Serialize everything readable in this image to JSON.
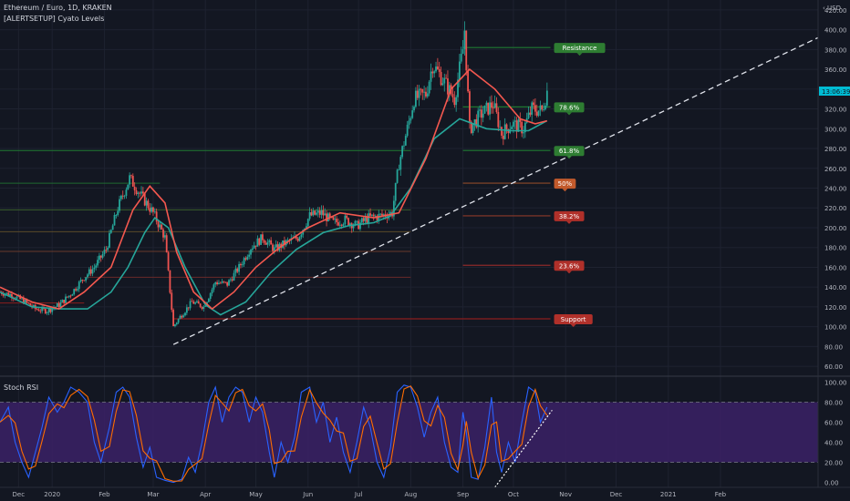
{
  "header": {
    "symbol_line": "Ethereum / Euro, 1D, KRAKEN",
    "indicator_line": "[ALERTSETUP] Cyato Levels",
    "rsi_title": "Stoch RSI",
    "currency": "USD"
  },
  "chart_data": {
    "type": "line",
    "title": "Ethereum / Euro, 1D, KRAKEN",
    "price_axis": {
      "ylim": [
        50,
        430
      ],
      "ticks": [
        60,
        80,
        100,
        120,
        140,
        160,
        180,
        200,
        220,
        240,
        260,
        280,
        300,
        320,
        340,
        360,
        380,
        400,
        420
      ],
      "tick_labels": [
        "60.00",
        "80.00",
        "100.00",
        "120.00",
        "140.00",
        "160.00",
        "180.00",
        "200.00",
        "220.00",
        "240.00",
        "260.00",
        "280.00",
        "300.00",
        "320.00",
        "340.00",
        "360.00",
        "380.00",
        "400.00",
        "420.00"
      ]
    },
    "rsi_axis": {
      "ylim": [
        -5,
        105
      ],
      "ticks": [
        0,
        20,
        40,
        60,
        80,
        100
      ],
      "tick_labels": [
        "0.00",
        "20.00",
        "40.00",
        "60.00",
        "80.00",
        "100.00"
      ],
      "band": [
        20,
        80
      ]
    },
    "time_axis": {
      "start": "2019-12-01",
      "end": "2021-03-31",
      "labels": [
        {
          "date": "2019-12-12",
          "text": "Dec"
        },
        {
          "date": "2020-01-01",
          "text": "2020"
        },
        {
          "date": "2020-02-01",
          "text": "Feb"
        },
        {
          "date": "2020-03-01",
          "text": "Mar"
        },
        {
          "date": "2020-04-01",
          "text": "Apr"
        },
        {
          "date": "2020-05-01",
          "text": "May"
        },
        {
          "date": "2020-06-01",
          "text": "Jun"
        },
        {
          "date": "2020-07-01",
          "text": "Jul"
        },
        {
          "date": "2020-08-01",
          "text": "Aug"
        },
        {
          "date": "2020-09-01",
          "text": "Sep"
        },
        {
          "date": "2020-10-01",
          "text": "Oct"
        },
        {
          "date": "2020-11-01",
          "text": "Nov"
        },
        {
          "date": "2020-12-01",
          "text": "Dec"
        },
        {
          "date": "2021-01-01",
          "text": "2021"
        },
        {
          "date": "2021-02-01",
          "text": "Feb"
        }
      ]
    },
    "last_price": {
      "value": 338,
      "label": "13:06:39",
      "color": "#00bcd4"
    },
    "price_series": [
      {
        "date": "2019-12-01",
        "close": 135
      },
      {
        "date": "2019-12-08",
        "close": 132
      },
      {
        "date": "2019-12-15",
        "close": 126
      },
      {
        "date": "2019-12-22",
        "close": 118
      },
      {
        "date": "2019-12-29",
        "close": 116
      },
      {
        "date": "2020-01-05",
        "close": 122
      },
      {
        "date": "2020-01-12",
        "close": 133
      },
      {
        "date": "2020-01-19",
        "close": 148
      },
      {
        "date": "2020-01-26",
        "close": 160
      },
      {
        "date": "2020-02-02",
        "close": 178
      },
      {
        "date": "2020-02-09",
        "close": 220
      },
      {
        "date": "2020-02-16",
        "close": 250
      },
      {
        "date": "2020-02-23",
        "close": 232
      },
      {
        "date": "2020-03-01",
        "close": 215
      },
      {
        "date": "2020-03-08",
        "close": 190
      },
      {
        "date": "2020-03-13",
        "close": 100
      },
      {
        "date": "2020-03-17",
        "close": 110
      },
      {
        "date": "2020-03-24",
        "close": 125
      },
      {
        "date": "2020-03-31",
        "close": 120
      },
      {
        "date": "2020-04-07",
        "close": 145
      },
      {
        "date": "2020-04-14",
        "close": 143
      },
      {
        "date": "2020-04-21",
        "close": 160
      },
      {
        "date": "2020-04-28",
        "close": 180
      },
      {
        "date": "2020-05-05",
        "close": 190
      },
      {
        "date": "2020-05-12",
        "close": 178
      },
      {
        "date": "2020-05-19",
        "close": 185
      },
      {
        "date": "2020-05-26",
        "close": 190
      },
      {
        "date": "2020-06-02",
        "close": 212
      },
      {
        "date": "2020-06-09",
        "close": 215
      },
      {
        "date": "2020-06-16",
        "close": 205
      },
      {
        "date": "2020-06-23",
        "close": 208
      },
      {
        "date": "2020-06-30",
        "close": 202
      },
      {
        "date": "2020-07-07",
        "close": 210
      },
      {
        "date": "2020-07-14",
        "close": 212
      },
      {
        "date": "2020-07-21",
        "close": 215
      },
      {
        "date": "2020-07-25",
        "close": 265
      },
      {
        "date": "2020-07-30",
        "close": 300
      },
      {
        "date": "2020-08-03",
        "close": 330
      },
      {
        "date": "2020-08-10",
        "close": 335
      },
      {
        "date": "2020-08-14",
        "close": 365
      },
      {
        "date": "2020-08-20",
        "close": 350
      },
      {
        "date": "2020-08-27",
        "close": 330
      },
      {
        "date": "2020-09-01",
        "close": 380
      },
      {
        "date": "2020-09-02",
        "close": 400
      },
      {
        "date": "2020-09-05",
        "close": 300
      },
      {
        "date": "2020-09-12",
        "close": 315
      },
      {
        "date": "2020-09-19",
        "close": 325
      },
      {
        "date": "2020-09-24",
        "close": 295
      },
      {
        "date": "2020-09-30",
        "close": 305
      },
      {
        "date": "2020-10-07",
        "close": 300
      },
      {
        "date": "2020-10-12",
        "close": 320
      },
      {
        "date": "2020-10-18",
        "close": 318
      },
      {
        "date": "2020-10-21",
        "close": 338
      }
    ],
    "ma_fast": [
      {
        "date": "2019-12-01",
        "value": 140
      },
      {
        "date": "2019-12-20",
        "value": 125
      },
      {
        "date": "2020-01-05",
        "value": 118
      },
      {
        "date": "2020-01-20",
        "value": 135
      },
      {
        "date": "2020-02-05",
        "value": 160
      },
      {
        "date": "2020-02-18",
        "value": 218
      },
      {
        "date": "2020-02-28",
        "value": 242
      },
      {
        "date": "2020-03-08",
        "value": 225
      },
      {
        "date": "2020-03-15",
        "value": 175
      },
      {
        "date": "2020-03-25",
        "value": 135
      },
      {
        "date": "2020-04-05",
        "value": 118
      },
      {
        "date": "2020-04-18",
        "value": 135
      },
      {
        "date": "2020-05-01",
        "value": 160
      },
      {
        "date": "2020-05-15",
        "value": 180
      },
      {
        "date": "2020-06-01",
        "value": 200
      },
      {
        "date": "2020-06-20",
        "value": 215
      },
      {
        "date": "2020-07-10",
        "value": 210
      },
      {
        "date": "2020-07-25",
        "value": 215
      },
      {
        "date": "2020-08-10",
        "value": 270
      },
      {
        "date": "2020-08-25",
        "value": 340
      },
      {
        "date": "2020-09-05",
        "value": 360
      },
      {
        "date": "2020-09-20",
        "value": 340
      },
      {
        "date": "2020-10-05",
        "value": 310
      },
      {
        "date": "2020-10-14",
        "value": 305
      },
      {
        "date": "2020-10-21",
        "value": 308
      }
    ],
    "ma_slow": [
      {
        "date": "2019-12-01",
        "value": 135
      },
      {
        "date": "2019-12-20",
        "value": 120
      },
      {
        "date": "2020-01-05",
        "value": 118
      },
      {
        "date": "2020-01-22",
        "value": 118
      },
      {
        "date": "2020-02-05",
        "value": 135
      },
      {
        "date": "2020-02-15",
        "value": 160
      },
      {
        "date": "2020-02-25",
        "value": 195
      },
      {
        "date": "2020-03-02",
        "value": 210
      },
      {
        "date": "2020-03-10",
        "value": 200
      },
      {
        "date": "2020-03-20",
        "value": 160
      },
      {
        "date": "2020-04-01",
        "value": 122
      },
      {
        "date": "2020-04-10",
        "value": 112
      },
      {
        "date": "2020-04-25",
        "value": 125
      },
      {
        "date": "2020-05-10",
        "value": 155
      },
      {
        "date": "2020-05-25",
        "value": 178
      },
      {
        "date": "2020-06-10",
        "value": 195
      },
      {
        "date": "2020-06-25",
        "value": 202
      },
      {
        "date": "2020-07-10",
        "value": 205
      },
      {
        "date": "2020-07-20",
        "value": 212
      },
      {
        "date": "2020-08-01",
        "value": 240
      },
      {
        "date": "2020-08-15",
        "value": 290
      },
      {
        "date": "2020-08-30",
        "value": 310
      },
      {
        "date": "2020-09-15",
        "value": 300
      },
      {
        "date": "2020-09-30",
        "value": 298
      },
      {
        "date": "2020-10-10",
        "value": 298
      },
      {
        "date": "2020-10-21",
        "value": 308
      }
    ],
    "trendline": {
      "from": {
        "date": "2020-03-13",
        "value": 82
      },
      "to": {
        "date": "2021-03-31",
        "value": 392
      }
    },
    "levels": [
      {
        "name": "Resistance",
        "value": 382,
        "from": "2020-09-01",
        "to": "2020-10-23",
        "color": "#1f7a32",
        "label_color": "#2e7d32"
      },
      {
        "name": "78.6%",
        "value": 322,
        "from": "2020-09-01",
        "to": "2020-10-23",
        "color": "#1f7a32",
        "label_color": "#2e7d32"
      },
      {
        "name": "61.8%",
        "value": 278,
        "from": "2020-09-01",
        "to": "2020-10-23",
        "color": "#1f7a32",
        "label_color": "#2e7d32"
      },
      {
        "name": "50%",
        "value": 245,
        "from": "2020-09-01",
        "to": "2020-10-23",
        "color": "#8d4a2a",
        "label_color": "#c25a2c"
      },
      {
        "name": "38.2%",
        "value": 212,
        "from": "2020-09-01",
        "to": "2020-10-23",
        "color": "#8d3a2a",
        "label_color": "#b0302a"
      },
      {
        "name": "23.6%",
        "value": 162,
        "from": "2020-09-01",
        "to": "2020-10-23",
        "color": "#8d2a2a",
        "label_color": "#b0302a"
      },
      {
        "name": "Support",
        "value": 108,
        "from": "2020-03-13",
        "to": "2020-10-23",
        "color": "#8b1e1e",
        "label_color": "#b0302a"
      }
    ],
    "hist_levels": [
      {
        "value": 278,
        "from": "2019-12-01",
        "to": "2020-08-01",
        "color": "#1f7a32"
      },
      {
        "value": 245,
        "from": "2019-12-01",
        "to": "2020-03-05",
        "color": "#1f6a30"
      },
      {
        "value": 218,
        "from": "2019-12-01",
        "to": "2020-08-01",
        "color": "#3a5e2c"
      },
      {
        "value": 196,
        "from": "2019-12-01",
        "to": "2020-08-01",
        "color": "#5a4a2a"
      },
      {
        "value": 176,
        "from": "2019-12-01",
        "to": "2020-08-01",
        "color": "#6a3a2a"
      },
      {
        "value": 150,
        "from": "2020-01-20",
        "to": "2020-08-01",
        "color": "#6a2a2a"
      },
      {
        "value": 124,
        "from": "2019-12-01",
        "to": "2020-01-20",
        "color": "#8b1e1e"
      }
    ],
    "rsi_k": [
      {
        "date": "2019-12-01",
        "value": 60
      },
      {
        "date": "2019-12-06",
        "value": 75
      },
      {
        "date": "2019-12-10",
        "value": 40
      },
      {
        "date": "2019-12-14",
        "value": 20
      },
      {
        "date": "2019-12-18",
        "value": 5
      },
      {
        "date": "2019-12-22",
        "value": 30
      },
      {
        "date": "2019-12-26",
        "value": 55
      },
      {
        "date": "2019-12-30",
        "value": 85
      },
      {
        "date": "2020-01-04",
        "value": 70
      },
      {
        "date": "2020-01-08",
        "value": 80
      },
      {
        "date": "2020-01-12",
        "value": 95
      },
      {
        "date": "2020-01-17",
        "value": 90
      },
      {
        "date": "2020-01-22",
        "value": 80
      },
      {
        "date": "2020-01-26",
        "value": 40
      },
      {
        "date": "2020-01-30",
        "value": 20
      },
      {
        "date": "2020-02-04",
        "value": 55
      },
      {
        "date": "2020-02-08",
        "value": 90
      },
      {
        "date": "2020-02-12",
        "value": 95
      },
      {
        "date": "2020-02-16",
        "value": 85
      },
      {
        "date": "2020-02-20",
        "value": 45
      },
      {
        "date": "2020-02-24",
        "value": 15
      },
      {
        "date": "2020-02-28",
        "value": 35
      },
      {
        "date": "2020-03-03",
        "value": 5
      },
      {
        "date": "2020-03-08",
        "value": 2
      },
      {
        "date": "2020-03-13",
        "value": 0
      },
      {
        "date": "2020-03-18",
        "value": 3
      },
      {
        "date": "2020-03-22",
        "value": 25
      },
      {
        "date": "2020-03-26",
        "value": 10
      },
      {
        "date": "2020-03-30",
        "value": 40
      },
      {
        "date": "2020-04-03",
        "value": 80
      },
      {
        "date": "2020-04-07",
        "value": 95
      },
      {
        "date": "2020-04-11",
        "value": 60
      },
      {
        "date": "2020-04-15",
        "value": 85
      },
      {
        "date": "2020-04-19",
        "value": 95
      },
      {
        "date": "2020-04-23",
        "value": 90
      },
      {
        "date": "2020-04-27",
        "value": 60
      },
      {
        "date": "2020-05-01",
        "value": 85
      },
      {
        "date": "2020-05-05",
        "value": 70
      },
      {
        "date": "2020-05-09",
        "value": 30
      },
      {
        "date": "2020-05-12",
        "value": 5
      },
      {
        "date": "2020-05-16",
        "value": 40
      },
      {
        "date": "2020-05-20",
        "value": 20
      },
      {
        "date": "2020-05-24",
        "value": 45
      },
      {
        "date": "2020-05-28",
        "value": 90
      },
      {
        "date": "2020-06-02",
        "value": 95
      },
      {
        "date": "2020-06-06",
        "value": 60
      },
      {
        "date": "2020-06-10",
        "value": 80
      },
      {
        "date": "2020-06-14",
        "value": 40
      },
      {
        "date": "2020-06-18",
        "value": 65
      },
      {
        "date": "2020-06-22",
        "value": 30
      },
      {
        "date": "2020-06-26",
        "value": 10
      },
      {
        "date": "2020-06-30",
        "value": 40
      },
      {
        "date": "2020-07-04",
        "value": 75
      },
      {
        "date": "2020-07-08",
        "value": 55
      },
      {
        "date": "2020-07-12",
        "value": 20
      },
      {
        "date": "2020-07-16",
        "value": 5
      },
      {
        "date": "2020-07-20",
        "value": 35
      },
      {
        "date": "2020-07-24",
        "value": 90
      },
      {
        "date": "2020-07-28",
        "value": 97
      },
      {
        "date": "2020-08-01",
        "value": 95
      },
      {
        "date": "2020-08-05",
        "value": 75
      },
      {
        "date": "2020-08-09",
        "value": 45
      },
      {
        "date": "2020-08-13",
        "value": 70
      },
      {
        "date": "2020-08-17",
        "value": 85
      },
      {
        "date": "2020-08-21",
        "value": 40
      },
      {
        "date": "2020-08-25",
        "value": 15
      },
      {
        "date": "2020-08-29",
        "value": 10
      },
      {
        "date": "2020-09-01",
        "value": 70
      },
      {
        "date": "2020-09-03",
        "value": 50
      },
      {
        "date": "2020-09-06",
        "value": 5
      },
      {
        "date": "2020-09-10",
        "value": 3
      },
      {
        "date": "2020-09-14",
        "value": 35
      },
      {
        "date": "2020-09-18",
        "value": 85
      },
      {
        "date": "2020-09-21",
        "value": 30
      },
      {
        "date": "2020-09-24",
        "value": 10
      },
      {
        "date": "2020-09-28",
        "value": 40
      },
      {
        "date": "2020-10-02",
        "value": 20
      },
      {
        "date": "2020-10-06",
        "value": 60
      },
      {
        "date": "2020-10-10",
        "value": 95
      },
      {
        "date": "2020-10-14",
        "value": 90
      },
      {
        "date": "2020-10-17",
        "value": 60
      },
      {
        "date": "2020-10-21",
        "value": 75
      }
    ],
    "rsi_trendline": {
      "from": {
        "date": "2020-09-20",
        "value": -5
      },
      "to": {
        "date": "2020-10-24",
        "value": 72
      }
    }
  }
}
